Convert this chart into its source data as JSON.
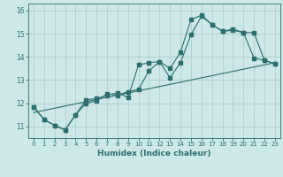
{
  "xlabel": "Humidex (Indice chaleur)",
  "bg_color": "#cde8e8",
  "line_color": "#2d6e6e",
  "grid_color": "#afd0d0",
  "xlim": [
    -0.5,
    23.5
  ],
  "ylim": [
    10.5,
    16.3
  ],
  "xticks": [
    0,
    1,
    2,
    3,
    4,
    5,
    6,
    7,
    8,
    9,
    10,
    11,
    12,
    13,
    14,
    15,
    16,
    17,
    18,
    19,
    20,
    21,
    22,
    23
  ],
  "yticks": [
    11,
    12,
    13,
    14,
    15,
    16
  ],
  "line1_x": [
    0,
    1,
    2,
    3,
    4,
    5,
    6,
    7,
    8,
    9,
    10,
    11,
    12,
    13,
    14,
    15,
    16,
    17,
    18,
    19,
    20,
    21,
    22,
    23
  ],
  "line1_y": [
    11.85,
    11.3,
    11.05,
    10.85,
    11.5,
    12.15,
    12.2,
    12.35,
    12.45,
    12.25,
    13.65,
    13.75,
    13.8,
    13.1,
    13.75,
    14.95,
    15.75,
    15.4,
    15.1,
    15.15,
    15.05,
    13.95,
    13.85,
    13.7
  ],
  "line2_x": [
    0,
    1,
    2,
    3,
    4,
    5,
    6,
    7,
    8,
    9,
    10,
    11,
    12,
    13,
    14,
    15,
    16,
    17,
    18,
    19,
    20,
    21,
    22,
    23
  ],
  "line2_y": [
    11.85,
    11.3,
    11.05,
    10.85,
    11.5,
    12.0,
    12.1,
    12.4,
    12.35,
    12.5,
    12.6,
    13.4,
    13.8,
    13.5,
    14.2,
    15.6,
    15.8,
    15.4,
    15.1,
    15.2,
    15.05,
    15.05,
    13.85,
    13.7
  ],
  "line3_x": [
    0,
    23
  ],
  "line3_y": [
    11.6,
    13.75
  ],
  "marker_size": 2.5,
  "linewidth": 0.8,
  "xtick_fontsize": 5.0,
  "ytick_fontsize": 5.5,
  "xlabel_fontsize": 6.5
}
